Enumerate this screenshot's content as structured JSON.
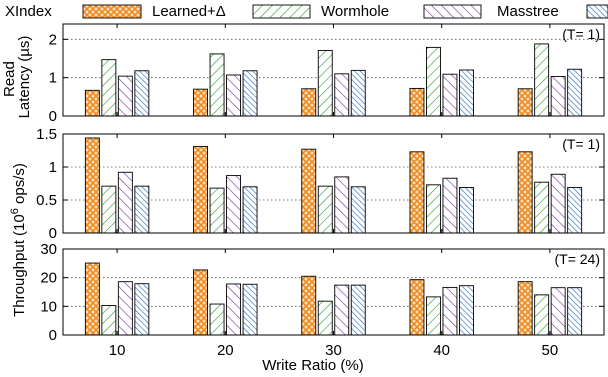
{
  "legend": {
    "items": [
      {
        "label": "XIndex",
        "color": "#f08a1c",
        "pattern": "crosshatch-orange"
      },
      {
        "label": "Learned+Δ",
        "color": "#3aa33a",
        "pattern": "diag-green"
      },
      {
        "label": "Wormhole",
        "color": "#7b3fa6",
        "pattern": "diag-purple"
      },
      {
        "label": "Masstree",
        "color": "#2e6fbf",
        "pattern": "diag-blue"
      }
    ]
  },
  "shared": {
    "xlabel": "Write Ratio (%)",
    "categories": [
      "10",
      "20",
      "30",
      "40",
      "50"
    ],
    "ylabel_latency": "Read Latency (µs)",
    "ylabel_throughput": "Throughput (10^6 ops/s)"
  },
  "chart_data": [
    {
      "type": "bar",
      "annotation": "(T=  1)",
      "categories": [
        "10",
        "20",
        "30",
        "40",
        "50"
      ],
      "ylim": [
        0,
        2.4
      ],
      "yticks": [
        "0",
        "1",
        "2"
      ],
      "ytick_values": [
        0,
        1,
        2
      ],
      "grid": true,
      "series": [
        {
          "name": "XIndex",
          "values": [
            0.67,
            0.7,
            0.71,
            0.72,
            0.71
          ]
        },
        {
          "name": "Learned+Δ",
          "values": [
            1.47,
            1.62,
            1.71,
            1.79,
            1.88
          ]
        },
        {
          "name": "Wormhole",
          "values": [
            1.04,
            1.07,
            1.1,
            1.09,
            1.03
          ]
        },
        {
          "name": "Masstree",
          "values": [
            1.18,
            1.18,
            1.19,
            1.2,
            1.22
          ]
        }
      ]
    },
    {
      "type": "bar",
      "annotation": "(T=  1)",
      "categories": [
        "10",
        "20",
        "30",
        "40",
        "50"
      ],
      "ylim": [
        0,
        1.5
      ],
      "yticks": [
        "0",
        "0.5",
        "1",
        "1.5"
      ],
      "ytick_values": [
        0,
        0.5,
        1,
        1.5
      ],
      "grid": true,
      "series": [
        {
          "name": "XIndex",
          "values": [
            1.44,
            1.31,
            1.27,
            1.23,
            1.23
          ]
        },
        {
          "name": "Learned+Δ",
          "values": [
            0.71,
            0.68,
            0.71,
            0.73,
            0.77
          ]
        },
        {
          "name": "Wormhole",
          "values": [
            0.92,
            0.87,
            0.85,
            0.83,
            0.89
          ]
        },
        {
          "name": "Masstree",
          "values": [
            0.71,
            0.7,
            0.7,
            0.69,
            0.69
          ]
        }
      ]
    },
    {
      "type": "bar",
      "annotation": "(T= 24)",
      "categories": [
        "10",
        "20",
        "30",
        "40",
        "50"
      ],
      "ylim": [
        0,
        30
      ],
      "yticks": [
        "0",
        "10",
        "20",
        "30"
      ],
      "ytick_values": [
        0,
        10,
        20,
        30
      ],
      "grid": true,
      "series": [
        {
          "name": "XIndex",
          "values": [
            25.1,
            22.7,
            20.5,
            19.3,
            18.6
          ]
        },
        {
          "name": "Learned+Δ",
          "values": [
            10.3,
            10.8,
            11.8,
            13.3,
            14.0
          ]
        },
        {
          "name": "Wormhole",
          "values": [
            18.6,
            17.8,
            17.4,
            16.6,
            16.5
          ]
        },
        {
          "name": "Masstree",
          "values": [
            17.9,
            17.7,
            17.4,
            17.2,
            16.5
          ]
        }
      ]
    }
  ]
}
